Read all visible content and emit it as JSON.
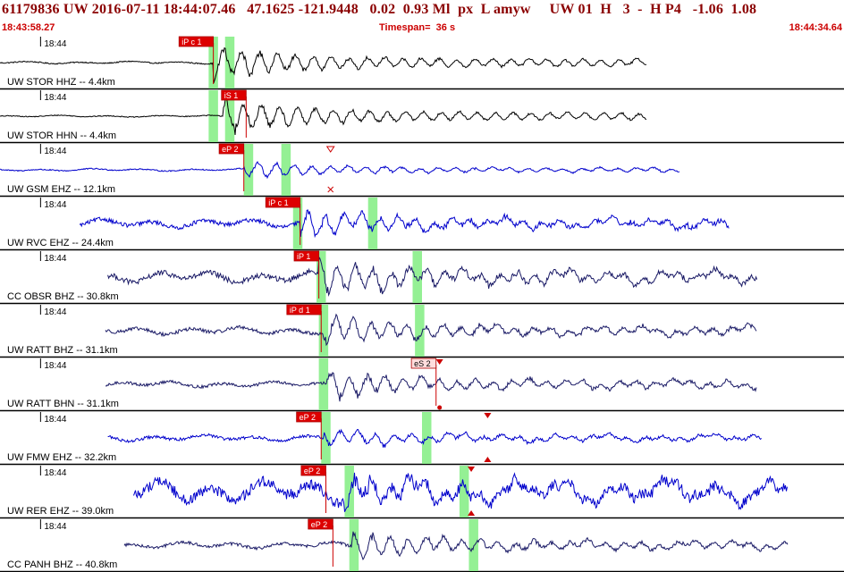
{
  "header": {
    "title": "61179836 UW 2016-07-11 18:44:07.46   47.1625 -121.9448   0.02  0.93 Ml  px  L amyw     UW 01  H   3  -  H P4   -1.06  1.08",
    "time_start": "18:43:58.27",
    "timespan": "Timespan=  36 s",
    "time_end": "18:44:34.64"
  },
  "colors": {
    "title": "#8b0000",
    "time_text": "#cc0000",
    "trace_black": "#000000",
    "trace_blue": "#0000cc",
    "trace_navy": "#1a1a66",
    "pick_box": "#dd0000",
    "pick_box_alt": "#ffdddd",
    "pick_window": "#88ee88"
  },
  "chart_data": {
    "type": "seismogram",
    "time_axis": {
      "start": "18:43:58.27",
      "end": "18:44:34.64",
      "span_s": 36,
      "minute_tick_label": "18:44"
    },
    "traces": [
      {
        "label": "UW STOR HHZ -- 4.4km",
        "color": "black",
        "trace_start_s": 0.0,
        "trace_end_s": 27.6,
        "onset_s": 9.1,
        "peak_amp": 0.55,
        "noise_amp": 0.02,
        "picks": [
          {
            "label": "iP c 1",
            "time_s": 9.1,
            "style": "red"
          }
        ],
        "windows": [
          [
            8.9,
            9.3
          ],
          [
            9.6,
            10.0
          ]
        ],
        "markers": []
      },
      {
        "label": "UW STOR HHN -- 4.4km",
        "color": "black",
        "trace_start_s": 0.0,
        "trace_end_s": 27.6,
        "onset_s": 9.5,
        "peak_amp": 0.55,
        "noise_amp": 0.015,
        "picks": [
          {
            "label": "iS 1",
            "time_s": 10.5,
            "style": "red"
          }
        ],
        "windows": [
          [
            8.9,
            9.3
          ],
          [
            9.6,
            10.0
          ]
        ],
        "markers": []
      },
      {
        "label": "UW GSM EHZ -- 12.1km",
        "color": "blue",
        "trace_start_s": 0.0,
        "trace_end_s": 29.0,
        "onset_s": 10.4,
        "peak_amp": 0.28,
        "noise_amp": 0.02,
        "picks": [
          {
            "label": "eP 2",
            "time_s": 10.4,
            "style": "red"
          }
        ],
        "windows": [
          [
            10.4,
            10.8
          ],
          [
            12.0,
            12.4
          ]
        ],
        "markers": [
          {
            "time_s": 14.1,
            "kind": "open-down"
          },
          {
            "time_s": 14.1,
            "kind": "x"
          }
        ]
      },
      {
        "label": "UW RVC EHZ -- 24.4km",
        "color": "blue",
        "trace_start_s": 3.4,
        "trace_end_s": 31.1,
        "onset_s": 12.8,
        "peak_amp": 0.45,
        "noise_amp": 0.07,
        "picks": [
          {
            "label": "iP c 1",
            "time_s": 12.8,
            "style": "red"
          }
        ],
        "windows": [
          [
            12.5,
            12.9
          ],
          [
            15.7,
            16.1
          ]
        ],
        "markers": []
      },
      {
        "label": "CC OBSR BHZ -- 30.8km",
        "color": "navy",
        "trace_start_s": 4.6,
        "trace_end_s": 32.3,
        "onset_s": 13.6,
        "peak_amp": 0.55,
        "noise_amp": 0.09,
        "picks": [
          {
            "label": "iP 1",
            "time_s": 13.6,
            "style": "red"
          }
        ],
        "windows": [
          [
            13.5,
            13.9
          ],
          [
            17.6,
            18.0
          ]
        ],
        "markers": []
      },
      {
        "label": "UW RATT BHZ -- 31.1km",
        "color": "navy",
        "trace_start_s": 4.5,
        "trace_end_s": 32.3,
        "onset_s": 13.8,
        "peak_amp": 0.45,
        "noise_amp": 0.06,
        "picks": [
          {
            "label": "iP d 1",
            "time_s": 13.7,
            "style": "red"
          }
        ],
        "windows": [
          [
            13.6,
            14.0
          ],
          [
            17.7,
            18.1
          ]
        ],
        "markers": []
      },
      {
        "label": "UW RATT BHN -- 31.1km",
        "color": "navy",
        "trace_start_s": 4.5,
        "trace_end_s": 32.3,
        "onset_s": 13.9,
        "peak_amp": 0.45,
        "noise_amp": 0.05,
        "picks": [
          {
            "label": "eS 2",
            "time_s": 18.6,
            "style": "pale"
          }
        ],
        "windows": [
          [
            13.6,
            14.0
          ]
        ],
        "markers": [
          {
            "time_s": 18.75,
            "kind": "filled-down"
          },
          {
            "time_s": 18.75,
            "kind": "dot"
          }
        ]
      },
      {
        "label": "UW FMW EHZ -- 32.2km",
        "color": "blue",
        "trace_start_s": 4.6,
        "trace_end_s": 32.5,
        "onset_s": 13.8,
        "peak_amp": 0.28,
        "noise_amp": 0.05,
        "picks": [
          {
            "label": "eP 2",
            "time_s": 13.7,
            "style": "red"
          }
        ],
        "windows": [
          [
            13.7,
            14.1
          ],
          [
            18.0,
            18.4
          ]
        ],
        "markers": [
          {
            "time_s": 20.8,
            "kind": "filled-down"
          },
          {
            "time_s": 20.8,
            "kind": "filled-up"
          }
        ]
      },
      {
        "label": "UW RER EHZ -- 39.0km",
        "color": "blue",
        "trace_start_s": 5.7,
        "trace_end_s": 33.6,
        "onset_s": 14.7,
        "peak_amp": 0.45,
        "noise_amp": 0.18,
        "picks": [
          {
            "label": "eP 2",
            "time_s": 13.9,
            "style": "red"
          }
        ],
        "windows": [
          [
            14.7,
            15.1
          ],
          [
            19.6,
            20.0
          ]
        ],
        "markers": [
          {
            "time_s": 20.1,
            "kind": "filled-down"
          },
          {
            "time_s": 20.1,
            "kind": "filled-up"
          }
        ]
      },
      {
        "label": "CC PANH BHZ -- 40.8km",
        "color": "navy",
        "trace_start_s": 5.3,
        "trace_end_s": 33.6,
        "onset_s": 15.0,
        "peak_amp": 0.45,
        "noise_amp": 0.05,
        "picks": [
          {
            "label": "eP 2",
            "time_s": 14.2,
            "style": "red"
          }
        ],
        "windows": [
          [
            14.9,
            15.3
          ],
          [
            20.0,
            20.4
          ]
        ],
        "markers": []
      }
    ]
  }
}
